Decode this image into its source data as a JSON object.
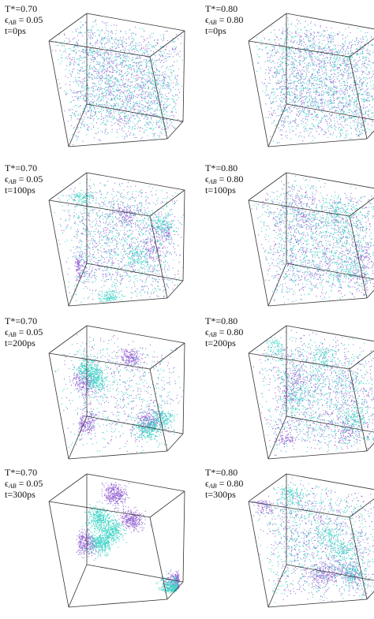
{
  "panels": [
    {
      "temperature": "T*=0.70",
      "epsilon": {
        "symbol": "ϵ",
        "subscript": "AB",
        "value": "= 0.05"
      },
      "time": "t=0ps"
    },
    {
      "temperature": "T*=0.80",
      "epsilon": {
        "symbol": "ϵ",
        "subscript": "AB",
        "value": "= 0.80"
      },
      "time": "t=0ps"
    },
    {
      "temperature": "T*=0.70",
      "epsilon": {
        "symbol": "ϵ",
        "subscript": "AB",
        "value": "= 0.05"
      },
      "time": "t=100ps"
    },
    {
      "temperature": "T*=0.80",
      "epsilon": {
        "symbol": "ϵ",
        "subscript": "AB",
        "value": "= 0.80"
      },
      "time": "t=100ps"
    },
    {
      "temperature": "T*=0.70",
      "epsilon": {
        "symbol": "ϵ",
        "subscript": "AB",
        "value": "= 0.05"
      },
      "time": "t=200ps"
    },
    {
      "temperature": "T*=0.80",
      "epsilon": {
        "symbol": "ϵ",
        "subscript": "AB",
        "value": "= 0.80"
      },
      "time": "t=200ps"
    },
    {
      "temperature": "T*=0.70",
      "epsilon": {
        "symbol": "ϵ",
        "subscript": "AB",
        "value": "= 0.05"
      },
      "time": "t=300ps"
    },
    {
      "temperature": "T*=0.80",
      "epsilon": {
        "symbol": "ϵ",
        "subscript": "AB",
        "value": "= 0.80"
      },
      "time": "t=300ps"
    }
  ]
}
